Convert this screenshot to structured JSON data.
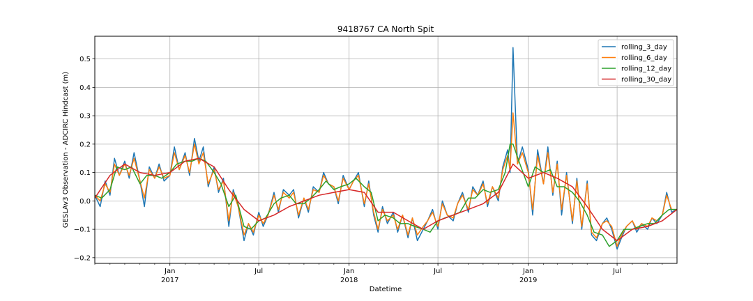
{
  "chart_data": {
    "type": "line",
    "title": "9418767 CA North Spit",
    "xlabel": "Datetime",
    "ylabel": "GESLAv3 Observation - ADCIRC Hindcast (m)",
    "xlim": [
      "2016-08-01",
      "2019-10-31"
    ],
    "ylim": [
      -0.22,
      0.58
    ],
    "grid": true,
    "legend_position": "top-right",
    "yticks": [
      -0.2,
      -0.1,
      0.0,
      0.1,
      0.2,
      0.3,
      0.4,
      0.5
    ],
    "ytick_labels": [
      "−0.2",
      "−0.1",
      "0.0",
      "0.1",
      "0.2",
      "0.3",
      "0.4",
      "0.5"
    ],
    "xticks_major": [
      {
        "date": "2017-01-01",
        "label": "Jan",
        "sublabel": "2017"
      },
      {
        "date": "2017-07-01",
        "label": "Jul",
        "sublabel": ""
      },
      {
        "date": "2018-01-01",
        "label": "Jan",
        "sublabel": "2018"
      },
      {
        "date": "2018-07-01",
        "label": "Jul",
        "sublabel": ""
      },
      {
        "date": "2019-01-01",
        "label": "Jan",
        "sublabel": "2019"
      },
      {
        "date": "2019-07-01",
        "label": "Jul",
        "sublabel": ""
      }
    ],
    "series": [
      {
        "name": "rolling_3_day",
        "color": "#1f77b4",
        "x": [
          "2016-08-01",
          "2016-08-12",
          "2016-08-22",
          "2016-09-01",
          "2016-09-10",
          "2016-09-20",
          "2016-10-01",
          "2016-10-10",
          "2016-10-20",
          "2016-11-01",
          "2016-11-10",
          "2016-11-20",
          "2016-12-01",
          "2016-12-10",
          "2016-12-20",
          "2017-01-01",
          "2017-01-10",
          "2017-01-20",
          "2017-02-01",
          "2017-02-10",
          "2017-02-20",
          "2017-03-01",
          "2017-03-10",
          "2017-03-20",
          "2017-04-01",
          "2017-04-10",
          "2017-04-20",
          "2017-05-01",
          "2017-05-10",
          "2017-05-20",
          "2017-06-01",
          "2017-06-10",
          "2017-06-20",
          "2017-07-01",
          "2017-07-10",
          "2017-07-20",
          "2017-08-01",
          "2017-08-10",
          "2017-08-20",
          "2017-09-01",
          "2017-09-10",
          "2017-09-20",
          "2017-10-01",
          "2017-10-10",
          "2017-10-20",
          "2017-11-01",
          "2017-11-10",
          "2017-11-20",
          "2017-12-01",
          "2017-12-10",
          "2017-12-20",
          "2018-01-01",
          "2018-01-10",
          "2018-01-20",
          "2018-02-01",
          "2018-02-10",
          "2018-02-20",
          "2018-03-01",
          "2018-03-10",
          "2018-03-20",
          "2018-04-01",
          "2018-04-10",
          "2018-04-20",
          "2018-05-01",
          "2018-05-10",
          "2018-05-20",
          "2018-06-01",
          "2018-06-10",
          "2018-06-20",
          "2018-07-01",
          "2018-07-10",
          "2018-07-20",
          "2018-08-01",
          "2018-08-10",
          "2018-08-20",
          "2018-09-01",
          "2018-09-10",
          "2018-09-20",
          "2018-10-01",
          "2018-10-10",
          "2018-10-20",
          "2018-11-01",
          "2018-11-10",
          "2018-11-20",
          "2018-11-25",
          "2018-12-01",
          "2018-12-10",
          "2018-12-20",
          "2019-01-01",
          "2019-01-10",
          "2019-01-20",
          "2019-02-01",
          "2019-02-10",
          "2019-02-20",
          "2019-03-01",
          "2019-03-10",
          "2019-03-20",
          "2019-04-01",
          "2019-04-10",
          "2019-04-20",
          "2019-05-01",
          "2019-05-10",
          "2019-05-20",
          "2019-06-01",
          "2019-06-10",
          "2019-06-20",
          "2019-07-01",
          "2019-07-10",
          "2019-07-20",
          "2019-08-01",
          "2019-08-10",
          "2019-08-20",
          "2019-09-01",
          "2019-09-10",
          "2019-09-20",
          "2019-10-01",
          "2019-10-10",
          "2019-10-20",
          "2019-10-31"
        ],
        "y": [
          0.02,
          -0.02,
          0.07,
          0.02,
          0.15,
          0.09,
          0.14,
          0.08,
          0.17,
          0.07,
          -0.02,
          0.12,
          0.08,
          0.13,
          0.07,
          0.09,
          0.19,
          0.11,
          0.17,
          0.09,
          0.22,
          0.14,
          0.19,
          0.05,
          0.12,
          0.03,
          0.08,
          -0.09,
          0.04,
          -0.02,
          -0.14,
          -0.08,
          -0.12,
          -0.04,
          -0.09,
          -0.05,
          0.03,
          -0.04,
          0.04,
          0.02,
          0.04,
          -0.06,
          0.01,
          -0.04,
          0.05,
          0.03,
          0.1,
          0.06,
          0.05,
          -0.01,
          0.09,
          0.04,
          0.07,
          0.1,
          -0.02,
          0.07,
          -0.05,
          -0.11,
          -0.02,
          -0.08,
          -0.04,
          -0.11,
          -0.05,
          -0.13,
          -0.06,
          -0.14,
          -0.1,
          -0.07,
          -0.03,
          -0.1,
          0.0,
          -0.05,
          -0.07,
          -0.01,
          0.03,
          -0.04,
          0.05,
          0.02,
          0.07,
          -0.02,
          0.05,
          0.0,
          0.12,
          0.18,
          0.1,
          0.54,
          0.13,
          0.19,
          0.11,
          -0.05,
          0.18,
          0.06,
          0.19,
          0.02,
          0.14,
          -0.05,
          0.1,
          -0.08,
          0.08,
          -0.1,
          0.07,
          -0.12,
          -0.14,
          -0.08,
          -0.06,
          -0.1,
          -0.17,
          -0.13,
          -0.09,
          -0.07,
          -0.11,
          -0.08,
          -0.1,
          -0.06,
          -0.08,
          -0.05,
          0.03,
          -0.04,
          -0.03
        ]
      },
      {
        "name": "rolling_6_day",
        "color": "#ff7f0e",
        "x": [
          "2016-08-01",
          "2016-08-12",
          "2016-08-22",
          "2016-09-01",
          "2016-09-10",
          "2016-09-20",
          "2016-10-01",
          "2016-10-10",
          "2016-10-20",
          "2016-11-01",
          "2016-11-10",
          "2016-11-20",
          "2016-12-01",
          "2016-12-10",
          "2016-12-20",
          "2017-01-01",
          "2017-01-10",
          "2017-01-20",
          "2017-02-01",
          "2017-02-10",
          "2017-02-20",
          "2017-03-01",
          "2017-03-10",
          "2017-03-20",
          "2017-04-01",
          "2017-04-10",
          "2017-04-20",
          "2017-05-01",
          "2017-05-10",
          "2017-05-20",
          "2017-06-01",
          "2017-06-10",
          "2017-06-20",
          "2017-07-01",
          "2017-07-10",
          "2017-07-20",
          "2017-08-01",
          "2017-08-10",
          "2017-08-20",
          "2017-09-01",
          "2017-09-10",
          "2017-09-20",
          "2017-10-01",
          "2017-10-10",
          "2017-10-20",
          "2017-11-01",
          "2017-11-10",
          "2017-11-20",
          "2017-12-01",
          "2017-12-10",
          "2017-12-20",
          "2018-01-01",
          "2018-01-10",
          "2018-01-20",
          "2018-02-01",
          "2018-02-10",
          "2018-02-20",
          "2018-03-01",
          "2018-03-10",
          "2018-03-20",
          "2018-04-01",
          "2018-04-10",
          "2018-04-20",
          "2018-05-01",
          "2018-05-10",
          "2018-05-20",
          "2018-06-01",
          "2018-06-10",
          "2018-06-20",
          "2018-07-01",
          "2018-07-10",
          "2018-07-20",
          "2018-08-01",
          "2018-08-10",
          "2018-08-20",
          "2018-09-01",
          "2018-09-10",
          "2018-09-20",
          "2018-10-01",
          "2018-10-10",
          "2018-10-20",
          "2018-11-01",
          "2018-11-10",
          "2018-11-20",
          "2018-11-25",
          "2018-12-01",
          "2018-12-10",
          "2018-12-20",
          "2019-01-01",
          "2019-01-10",
          "2019-01-20",
          "2019-02-01",
          "2019-02-10",
          "2019-02-20",
          "2019-03-01",
          "2019-03-10",
          "2019-03-20",
          "2019-04-01",
          "2019-04-10",
          "2019-04-20",
          "2019-05-01",
          "2019-05-10",
          "2019-05-20",
          "2019-06-01",
          "2019-06-10",
          "2019-06-20",
          "2019-07-01",
          "2019-07-10",
          "2019-07-20",
          "2019-08-01",
          "2019-08-10",
          "2019-08-20",
          "2019-09-01",
          "2019-09-10",
          "2019-09-20",
          "2019-10-01",
          "2019-10-10",
          "2019-10-20",
          "2019-10-31"
        ],
        "y": [
          0.02,
          0.0,
          0.06,
          0.03,
          0.13,
          0.09,
          0.13,
          0.09,
          0.15,
          0.07,
          0.01,
          0.11,
          0.08,
          0.12,
          0.08,
          0.09,
          0.17,
          0.11,
          0.16,
          0.1,
          0.2,
          0.13,
          0.17,
          0.06,
          0.11,
          0.04,
          0.07,
          -0.07,
          0.03,
          -0.02,
          -0.12,
          -0.08,
          -0.11,
          -0.05,
          -0.08,
          -0.05,
          0.02,
          -0.03,
          0.03,
          0.01,
          0.03,
          -0.05,
          0.01,
          -0.03,
          0.04,
          0.03,
          0.09,
          0.06,
          0.05,
          0.0,
          0.08,
          0.04,
          0.07,
          0.09,
          -0.01,
          0.06,
          -0.04,
          -0.1,
          -0.03,
          -0.07,
          -0.05,
          -0.1,
          -0.05,
          -0.12,
          -0.06,
          -0.12,
          -0.09,
          -0.07,
          -0.04,
          -0.09,
          -0.01,
          -0.05,
          -0.06,
          -0.01,
          0.02,
          -0.03,
          0.04,
          0.02,
          0.06,
          -0.01,
          0.05,
          0.01,
          0.11,
          0.16,
          0.11,
          0.31,
          0.13,
          0.17,
          0.1,
          -0.03,
          0.16,
          0.06,
          0.17,
          0.03,
          0.13,
          -0.03,
          0.09,
          -0.07,
          0.07,
          -0.09,
          0.06,
          -0.11,
          -0.13,
          -0.08,
          -0.07,
          -0.09,
          -0.16,
          -0.12,
          -0.09,
          -0.07,
          -0.1,
          -0.08,
          -0.09,
          -0.06,
          -0.07,
          -0.05,
          0.02,
          -0.03,
          -0.03
        ]
      },
      {
        "name": "rolling_12_day",
        "color": "#2ca02c",
        "x": [
          "2016-08-01",
          "2016-08-15",
          "2016-09-01",
          "2016-09-15",
          "2016-10-01",
          "2016-10-15",
          "2016-11-01",
          "2016-11-15",
          "2016-12-01",
          "2016-12-15",
          "2017-01-01",
          "2017-01-15",
          "2017-02-01",
          "2017-02-15",
          "2017-03-01",
          "2017-03-15",
          "2017-04-01",
          "2017-04-15",
          "2017-05-01",
          "2017-05-15",
          "2017-06-01",
          "2017-06-15",
          "2017-07-01",
          "2017-07-15",
          "2017-08-01",
          "2017-08-15",
          "2017-09-01",
          "2017-09-15",
          "2017-10-01",
          "2017-10-15",
          "2017-11-01",
          "2017-11-15",
          "2017-12-01",
          "2017-12-15",
          "2018-01-01",
          "2018-01-15",
          "2018-02-01",
          "2018-02-15",
          "2018-03-01",
          "2018-03-15",
          "2018-04-01",
          "2018-04-15",
          "2018-05-01",
          "2018-05-15",
          "2018-06-01",
          "2018-06-15",
          "2018-07-01",
          "2018-07-15",
          "2018-08-01",
          "2018-08-15",
          "2018-09-01",
          "2018-09-15",
          "2018-10-01",
          "2018-10-15",
          "2018-11-01",
          "2018-11-15",
          "2018-11-25",
          "2018-12-01",
          "2018-12-15",
          "2019-01-01",
          "2019-01-15",
          "2019-02-01",
          "2019-02-15",
          "2019-03-01",
          "2019-03-15",
          "2019-04-01",
          "2019-04-15",
          "2019-05-01",
          "2019-05-15",
          "2019-06-01",
          "2019-06-15",
          "2019-07-01",
          "2019-07-15",
          "2019-08-01",
          "2019-08-15",
          "2019-09-01",
          "2019-09-15",
          "2019-10-01",
          "2019-10-15",
          "2019-10-31"
        ],
        "y": [
          0.02,
          0.01,
          0.04,
          0.12,
          0.11,
          0.12,
          0.06,
          0.09,
          0.09,
          0.08,
          0.1,
          0.13,
          0.14,
          0.14,
          0.15,
          0.14,
          0.1,
          0.06,
          -0.02,
          0.02,
          -0.09,
          -0.1,
          -0.07,
          -0.06,
          -0.01,
          0.01,
          0.02,
          -0.01,
          -0.01,
          0.01,
          0.04,
          0.07,
          0.04,
          0.05,
          0.06,
          0.08,
          0.05,
          0.03,
          -0.07,
          -0.05,
          -0.06,
          -0.08,
          -0.08,
          -0.09,
          -0.1,
          -0.11,
          -0.07,
          -0.06,
          -0.05,
          -0.04,
          0.01,
          0.01,
          0.04,
          0.03,
          0.04,
          0.1,
          0.2,
          0.2,
          0.13,
          0.05,
          0.12,
          0.1,
          0.11,
          0.05,
          0.05,
          0.03,
          0.0,
          -0.05,
          -0.11,
          -0.12,
          -0.16,
          -0.14,
          -0.1,
          -0.1,
          -0.09,
          -0.08,
          -0.08,
          -0.05,
          -0.03,
          -0.03
        ]
      },
      {
        "name": "rolling_30_day",
        "color": "#d62728",
        "x": [
          "2016-08-01",
          "2016-09-01",
          "2016-10-01",
          "2016-11-01",
          "2016-12-01",
          "2017-01-01",
          "2017-02-01",
          "2017-03-01",
          "2017-04-01",
          "2017-05-01",
          "2017-06-01",
          "2017-07-01",
          "2017-08-01",
          "2017-09-01",
          "2017-10-01",
          "2017-11-01",
          "2017-12-01",
          "2018-01-01",
          "2018-02-01",
          "2018-03-01",
          "2018-04-01",
          "2018-05-01",
          "2018-06-01",
          "2018-07-01",
          "2018-08-01",
          "2018-09-01",
          "2018-10-01",
          "2018-11-01",
          "2018-12-01",
          "2019-01-01",
          "2019-02-01",
          "2019-03-01",
          "2019-04-01",
          "2019-05-01",
          "2019-06-01",
          "2019-07-01",
          "2019-08-01",
          "2019-09-01",
          "2019-10-01",
          "2019-10-31"
        ],
        "y": [
          0.01,
          0.09,
          0.13,
          0.1,
          0.09,
          0.1,
          0.14,
          0.15,
          0.12,
          0.04,
          -0.03,
          -0.07,
          -0.05,
          -0.02,
          0.0,
          0.02,
          0.03,
          0.04,
          0.03,
          -0.04,
          -0.04,
          -0.07,
          -0.1,
          -0.07,
          -0.05,
          -0.03,
          -0.01,
          0.03,
          0.13,
          0.08,
          0.1,
          0.08,
          0.05,
          -0.02,
          -0.1,
          -0.14,
          -0.1,
          -0.09,
          -0.07,
          -0.03
        ]
      }
    ]
  }
}
